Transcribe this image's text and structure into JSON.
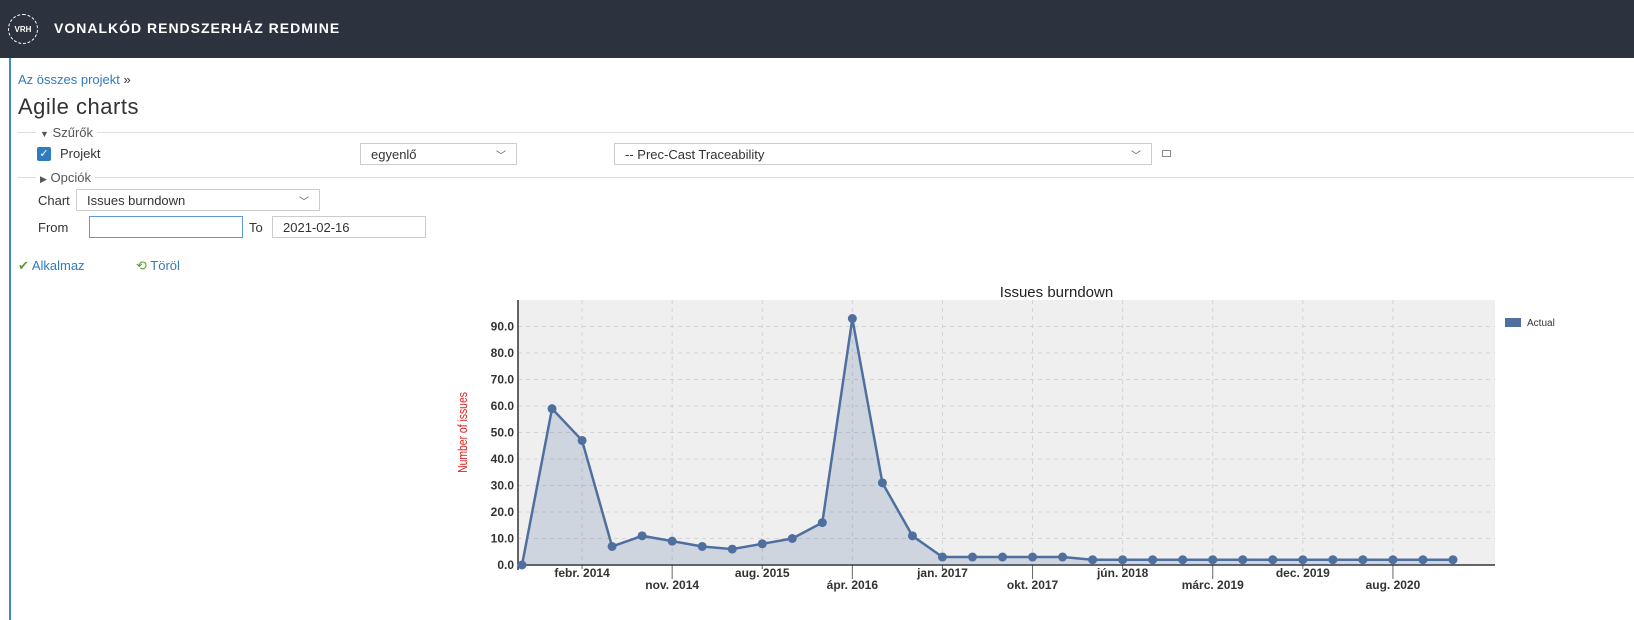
{
  "header": {
    "logo": "VRH",
    "title": "VONALKÓD RENDSZERHÁZ REDMINE"
  },
  "breadcrumb": {
    "link": "Az összes projekt",
    "separator": "»"
  },
  "page_title": "Agile charts",
  "filters": {
    "legend": "Szűrők",
    "field": "Projekt",
    "operator": "egyenlő",
    "value": "-- Prec-Cast Traceability"
  },
  "options": {
    "legend": "Opciók",
    "chart_label": "Chart",
    "chart_value": "Issues burndown",
    "from_label": "From",
    "to_label": "To",
    "to_value": "2021-02-16"
  },
  "actions": {
    "apply": "Alkalmaz",
    "clear": "Töröl"
  },
  "chart_data": {
    "type": "line",
    "title": "Issues burndown",
    "y_label": "Number of issues",
    "categories": [
      null,
      null,
      "febr. 2014",
      null,
      null,
      "nov. 2014",
      null,
      null,
      "aug. 2015",
      null,
      null,
      "ápr. 2016",
      null,
      null,
      "jan. 2017",
      null,
      null,
      "okt. 2017",
      null,
      null,
      "jún. 2018",
      null,
      null,
      "márc. 2019",
      null,
      null,
      "dec. 2019",
      null,
      null,
      "aug. 2020",
      null,
      null
    ],
    "series": [
      {
        "name": "Actual",
        "color": "#4f6f9f",
        "values": [
          0,
          59,
          47,
          7,
          11,
          9,
          7,
          6,
          8,
          10,
          16,
          93,
          31,
          11,
          3,
          3,
          3,
          3,
          3,
          2,
          2,
          2,
          2,
          2,
          2,
          2,
          2,
          2,
          2,
          2,
          2,
          2
        ]
      }
    ],
    "ylim": [
      0,
      100
    ],
    "yticks": [
      {
        "value": 0,
        "label": "0.0"
      },
      {
        "value": 10,
        "label": "10.0"
      },
      {
        "value": 20,
        "label": "20.0"
      },
      {
        "value": 30,
        "label": "30.0"
      },
      {
        "value": 40,
        "label": "40.0"
      },
      {
        "value": 50,
        "label": "50.0"
      },
      {
        "value": 60,
        "label": "60.0"
      },
      {
        "value": 70,
        "label": "70.0"
      },
      {
        "value": 80,
        "label": "80.0"
      },
      {
        "value": 90,
        "label": "90.0"
      }
    ],
    "grid": true,
    "legend": "top-right"
  }
}
